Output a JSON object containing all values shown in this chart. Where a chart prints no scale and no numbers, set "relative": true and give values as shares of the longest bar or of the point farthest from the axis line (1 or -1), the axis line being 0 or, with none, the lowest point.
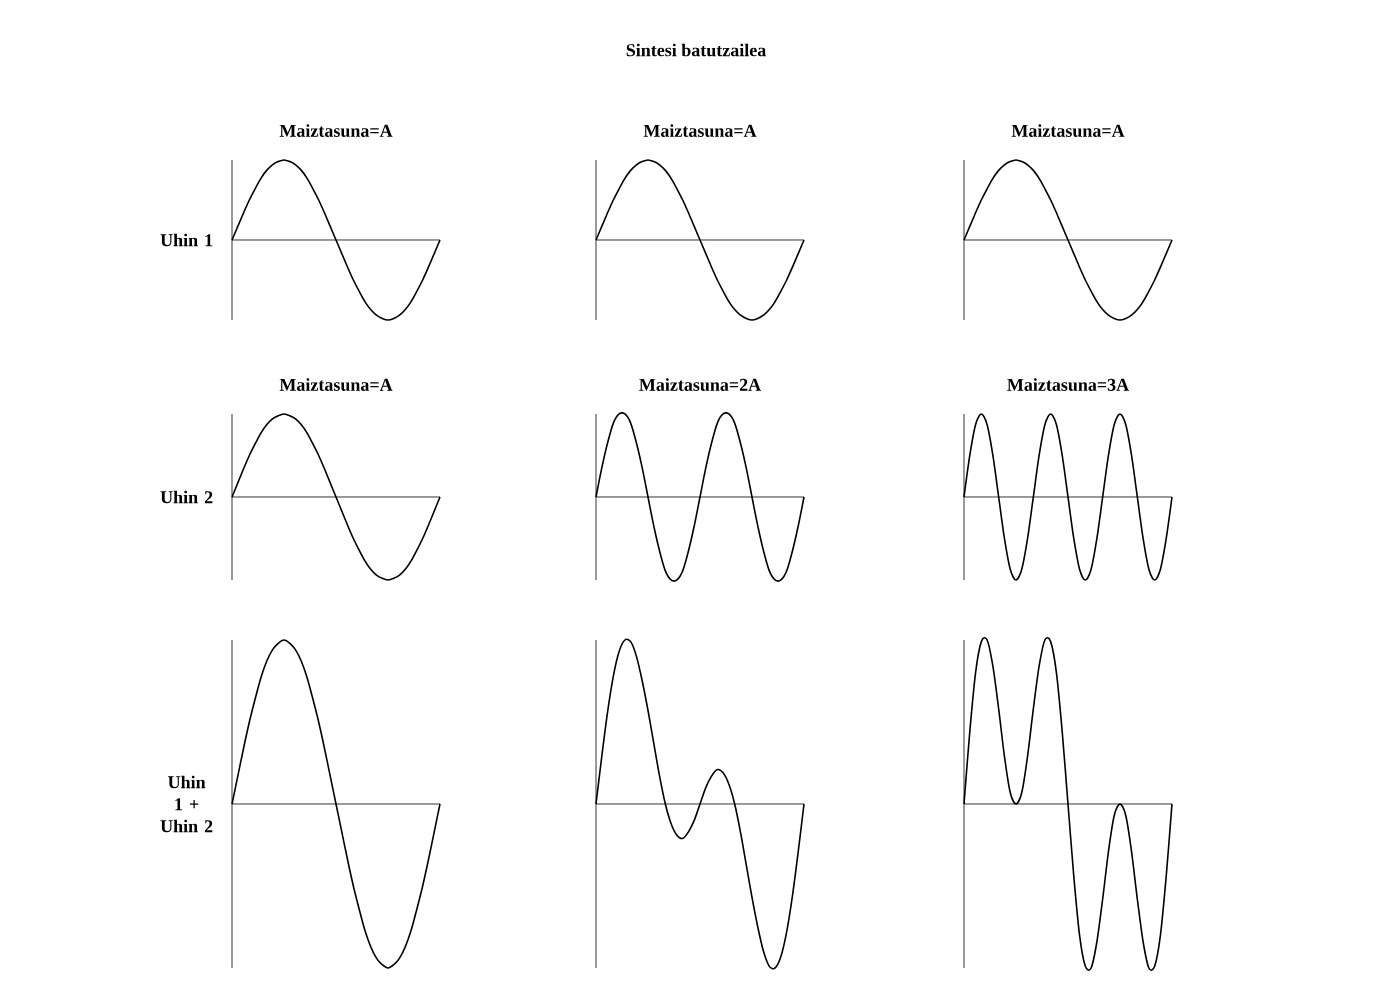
{
  "chart_data": [
    {
      "type": "other",
      "title": "Sintesi batutzailea"
    },
    {
      "type": "line",
      "relative": true,
      "title": "Maiztasuna=A",
      "ylabel": "Uhin 1",
      "color": "#000000",
      "categories": [
        null,
        null,
        null,
        null,
        null,
        null,
        null,
        null,
        null,
        null,
        null,
        null,
        null,
        null,
        null,
        null,
        null,
        null,
        null,
        null,
        null,
        null,
        null,
        null,
        null,
        null,
        null,
        null,
        null,
        null,
        null,
        null,
        null,
        null,
        null,
        null,
        null
      ],
      "values": [
        0,
        0.17,
        0.34,
        0.5,
        0.64,
        0.77,
        0.87,
        0.94,
        0.98,
        1,
        0.98,
        0.94,
        0.87,
        0.77,
        0.64,
        0.5,
        0.34,
        0.17,
        0,
        -0.17,
        -0.34,
        -0.5,
        -0.64,
        -0.77,
        -0.87,
        -0.94,
        -0.98,
        -1,
        -0.98,
        -0.94,
        -0.87,
        -0.77,
        -0.64,
        -0.5,
        -0.34,
        -0.17,
        0
      ]
    },
    {
      "type": "line",
      "relative": true,
      "title": "Maiztasuna=A",
      "color": "#000000",
      "categories": [
        null,
        null,
        null,
        null,
        null,
        null,
        null,
        null,
        null,
        null,
        null,
        null,
        null,
        null,
        null,
        null,
        null,
        null,
        null,
        null,
        null,
        null,
        null,
        null,
        null,
        null,
        null,
        null,
        null,
        null,
        null,
        null,
        null,
        null,
        null,
        null,
        null
      ],
      "values": [
        0,
        0.17,
        0.34,
        0.5,
        0.64,
        0.77,
        0.87,
        0.94,
        0.98,
        1,
        0.98,
        0.94,
        0.87,
        0.77,
        0.64,
        0.5,
        0.34,
        0.17,
        0,
        -0.17,
        -0.34,
        -0.5,
        -0.64,
        -0.77,
        -0.87,
        -0.94,
        -0.98,
        -1,
        -0.98,
        -0.94,
        -0.87,
        -0.77,
        -0.64,
        -0.5,
        -0.34,
        -0.17,
        0
      ]
    },
    {
      "type": "line",
      "relative": true,
      "title": "Maiztasuna=A",
      "color": "#000000",
      "categories": [
        null,
        null,
        null,
        null,
        null,
        null,
        null,
        null,
        null,
        null,
        null,
        null,
        null,
        null,
        null,
        null,
        null,
        null,
        null,
        null,
        null,
        null,
        null,
        null,
        null,
        null,
        null,
        null,
        null,
        null,
        null,
        null,
        null,
        null,
        null,
        null,
        null
      ],
      "values": [
        0,
        0.17,
        0.34,
        0.5,
        0.64,
        0.77,
        0.87,
        0.94,
        0.98,
        1,
        0.98,
        0.94,
        0.87,
        0.77,
        0.64,
        0.5,
        0.34,
        0.17,
        0,
        -0.17,
        -0.34,
        -0.5,
        -0.64,
        -0.77,
        -0.87,
        -0.94,
        -0.98,
        -1,
        -0.98,
        -0.94,
        -0.87,
        -0.77,
        -0.64,
        -0.5,
        -0.34,
        -0.17,
        0
      ]
    },
    {
      "type": "line",
      "relative": true,
      "title": "Maiztasuna=A",
      "ylabel": "Uhin 2",
      "color": "#000000",
      "categories": [
        null,
        null,
        null,
        null,
        null,
        null,
        null,
        null,
        null,
        null,
        null,
        null,
        null,
        null,
        null,
        null,
        null,
        null,
        null,
        null,
        null,
        null,
        null,
        null,
        null,
        null,
        null,
        null,
        null,
        null,
        null,
        null,
        null,
        null,
        null,
        null,
        null
      ],
      "values": [
        0,
        0.17,
        0.34,
        0.5,
        0.64,
        0.77,
        0.87,
        0.94,
        0.98,
        1,
        0.98,
        0.94,
        0.87,
        0.77,
        0.64,
        0.5,
        0.34,
        0.17,
        0,
        -0.17,
        -0.34,
        -0.5,
        -0.64,
        -0.77,
        -0.87,
        -0.94,
        -0.98,
        -1,
        -0.98,
        -0.94,
        -0.87,
        -0.77,
        -0.64,
        -0.5,
        -0.34,
        -0.17,
        0
      ]
    },
    {
      "type": "line",
      "relative": true,
      "title": "Maiztasuna=2A",
      "color": "#000000",
      "categories": [
        null,
        null,
        null,
        null,
        null,
        null,
        null,
        null,
        null,
        null,
        null,
        null,
        null,
        null,
        null,
        null,
        null,
        null,
        null,
        null,
        null,
        null,
        null,
        null,
        null,
        null,
        null,
        null,
        null,
        null,
        null,
        null,
        null,
        null,
        null,
        null,
        null
      ],
      "values": [
        0,
        0.35,
        0.65,
        0.89,
        1,
        1,
        0.89,
        0.65,
        0.35,
        0,
        -0.35,
        -0.65,
        -0.89,
        -1,
        -1,
        -0.89,
        -0.65,
        -0.35,
        0,
        0.35,
        0.65,
        0.89,
        1,
        1,
        0.89,
        0.65,
        0.35,
        0,
        -0.35,
        -0.65,
        -0.89,
        -1,
        -1,
        -0.89,
        -0.65,
        -0.35,
        0
      ]
    },
    {
      "type": "line",
      "relative": true,
      "title": "Maiztasuna=3A",
      "color": "#000000",
      "categories": [
        null,
        null,
        null,
        null,
        null,
        null,
        null,
        null,
        null,
        null,
        null,
        null,
        null,
        null,
        null,
        null,
        null,
        null,
        null,
        null,
        null,
        null,
        null,
        null,
        null,
        null,
        null,
        null,
        null,
        null,
        null,
        null,
        null,
        null,
        null,
        null,
        null
      ],
      "values": [
        0,
        0.5,
        0.87,
        1,
        0.87,
        0.5,
        0,
        -0.5,
        -0.87,
        -1,
        -0.87,
        -0.5,
        0,
        0.5,
        0.87,
        1,
        0.87,
        0.5,
        0,
        -0.5,
        -0.87,
        -1,
        -0.87,
        -0.5,
        0,
        0.5,
        0.87,
        1,
        0.87,
        0.5,
        0,
        -0.5,
        -0.87,
        -1,
        -0.87,
        -0.5,
        0
      ]
    },
    {
      "type": "line",
      "relative": true,
      "ylabel": "Uhin 1 + Uhin 2",
      "color": "#000000",
      "categories": [
        null,
        null,
        null,
        null,
        null,
        null,
        null,
        null,
        null,
        null,
        null,
        null,
        null,
        null,
        null,
        null,
        null,
        null,
        null,
        null,
        null,
        null,
        null,
        null,
        null,
        null,
        null,
        null,
        null,
        null,
        null,
        null,
        null,
        null,
        null,
        null,
        null
      ],
      "values": [
        0,
        0.17,
        0.34,
        0.5,
        0.64,
        0.77,
        0.87,
        0.94,
        0.98,
        1,
        0.98,
        0.94,
        0.87,
        0.77,
        0.64,
        0.5,
        0.34,
        0.17,
        0,
        -0.17,
        -0.34,
        -0.5,
        -0.64,
        -0.77,
        -0.87,
        -0.94,
        -0.98,
        -1,
        -0.98,
        -0.94,
        -0.87,
        -0.77,
        -0.64,
        -0.5,
        -0.34,
        -0.17,
        0
      ]
    },
    {
      "type": "line",
      "relative": true,
      "color": "#000000",
      "categories": [
        null,
        null,
        null,
        null,
        null,
        null,
        null,
        null,
        null,
        null,
        null,
        null,
        null,
        null,
        null,
        null,
        null,
        null,
        null,
        null,
        null,
        null,
        null,
        null,
        null,
        null,
        null,
        null,
        null,
        null,
        null,
        null,
        null,
        null,
        null,
        null,
        null
      ],
      "values": [
        0,
        0.29,
        0.56,
        0.78,
        0.93,
        1,
        0.99,
        0.9,
        0.75,
        0.57,
        0.37,
        0.17,
        0,
        -0.12,
        -0.19,
        -0.21,
        -0.17,
        -0.1,
        0,
        0.1,
        0.17,
        0.21,
        0.19,
        0.12,
        0,
        -0.17,
        -0.37,
        -0.57,
        -0.75,
        -0.9,
        -0.99,
        -1,
        -0.93,
        -0.78,
        -0.56,
        -0.29,
        0
      ]
    },
    {
      "type": "line",
      "relative": true,
      "color": "#000000",
      "categories": [
        null,
        null,
        null,
        null,
        null,
        null,
        null,
        null,
        null,
        null,
        null,
        null,
        null,
        null,
        null,
        null,
        null,
        null,
        null,
        null,
        null,
        null,
        null,
        null,
        null,
        null,
        null,
        null,
        null,
        null,
        null,
        null,
        null,
        null,
        null,
        null,
        null
      ],
      "values": [
        0,
        0.44,
        0.8,
        0.99,
        1,
        0.84,
        0.58,
        0.29,
        0.07,
        0,
        0.07,
        0.29,
        0.58,
        0.84,
        1,
        0.99,
        0.8,
        0.44,
        0,
        -0.44,
        -0.8,
        -0.99,
        -1,
        -0.84,
        -0.58,
        -0.29,
        -0.07,
        0,
        -0.07,
        -0.29,
        -0.58,
        -0.84,
        -1,
        -0.99,
        -0.8,
        -0.44,
        0
      ]
    }
  ]
}
